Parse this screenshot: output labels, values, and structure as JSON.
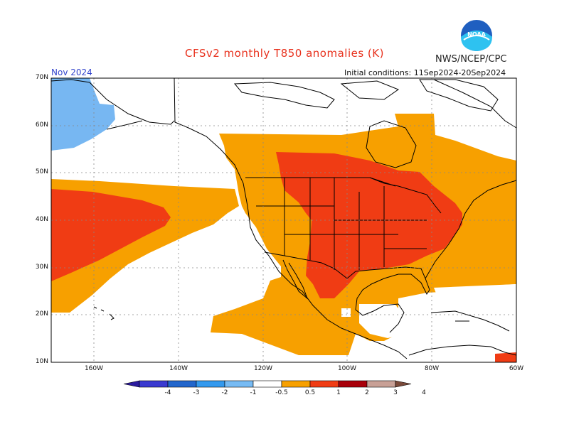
{
  "title": "CFSv2 monthly T850 anomalies (K)",
  "agency": "NWS/NCEP/CPC",
  "logo_text": "NOAA",
  "month": "Nov 2024",
  "initial_conditions": "Initial conditions: 11Sep2024-20Sep2024",
  "lat_labels": [
    "70N",
    "60N",
    "50N",
    "40N",
    "30N",
    "20N",
    "10N"
  ],
  "lon_labels": [
    "160W",
    "140W",
    "120W",
    "100W",
    "80W",
    "60W"
  ],
  "colorbar": {
    "labels": [
      "-4",
      "-3",
      "-2",
      "-1",
      "-0.5",
      "0.5",
      "1",
      "2",
      "3",
      "4"
    ],
    "colors": [
      "#2a1a9e",
      "#3a3ad0",
      "#2266cc",
      "#3399ee",
      "#77bbf4",
      "#ffffff",
      "#f7a000",
      "#f03c14",
      "#a8000a",
      "#c8a096",
      "#7a4a3a"
    ]
  },
  "colors": {
    "cold": "#77b7f2",
    "warm_0_5_1": "#f7a000",
    "warm_1_2": "#f03c14",
    "warm_2_3": "#a8000a"
  }
}
